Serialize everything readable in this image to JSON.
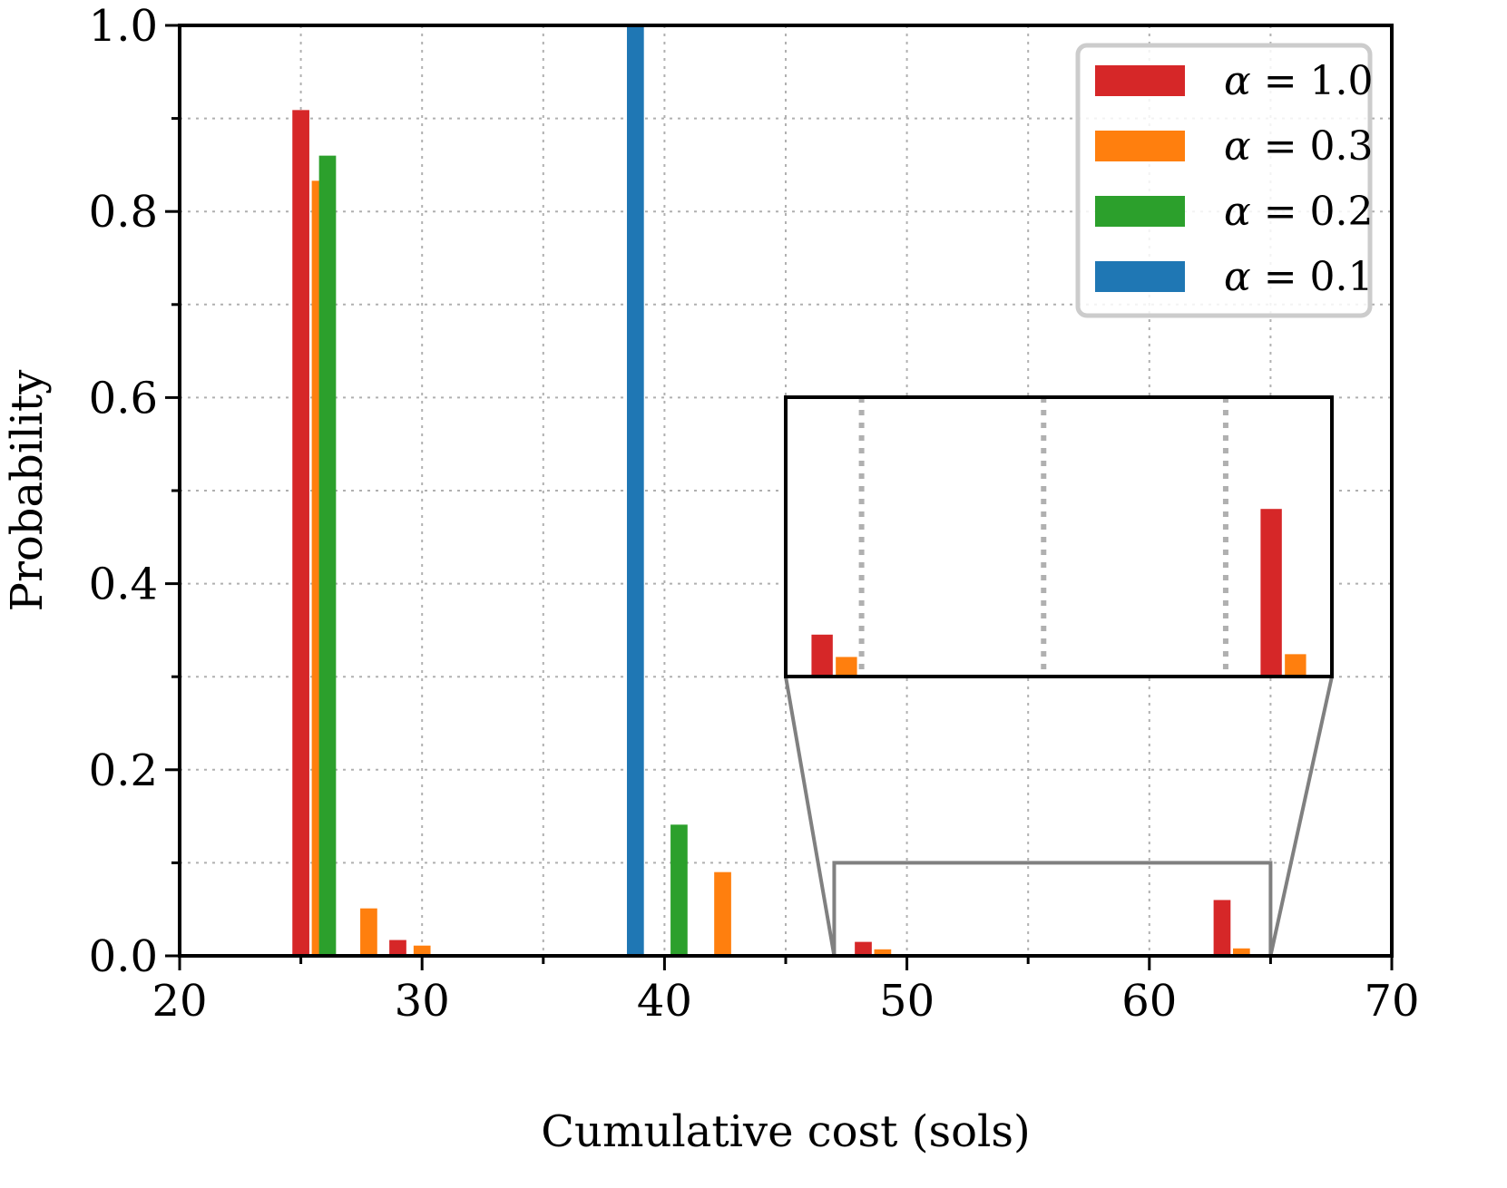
{
  "chart_data": {
    "type": "bar",
    "xlabel": "Cumulative cost (sols)",
    "ylabel": "Probability",
    "xlim": [
      20,
      70
    ],
    "ylim": [
      0,
      1.0
    ],
    "xticks": [
      20,
      30,
      40,
      50,
      60,
      70
    ],
    "xtick_labels": [
      "20",
      "30",
      "40",
      "50",
      "60",
      "70"
    ],
    "yticks": [
      0.0,
      0.2,
      0.4,
      0.6,
      0.8,
      1.0
    ],
    "ytick_labels": [
      "0.0",
      "0.2",
      "0.4",
      "0.6",
      "0.8",
      "1.0"
    ],
    "grid": true,
    "bar_width": 0.7,
    "legend_position": "top-right",
    "series": [
      {
        "name": "α = 1.0",
        "legend_prefix": "α",
        "legend_value": "1.0",
        "color": "#d62728",
        "x": [
          25.0,
          29.0,
          48.2,
          63.0
        ],
        "values": [
          0.909,
          0.017,
          0.015,
          0.06
        ]
      },
      {
        "name": "α = 0.3",
        "legend_prefix": "α",
        "legend_value": "0.3",
        "color": "#ff7f0e",
        "x": [
          25.8,
          27.8,
          30.0,
          42.4,
          49.0,
          63.8
        ],
        "values": [
          0.833,
          0.051,
          0.011,
          0.09,
          0.007,
          0.008
        ]
      },
      {
        "name": "α = 0.2",
        "legend_prefix": "α",
        "legend_value": "0.2",
        "color": "#2ca02c",
        "x": [
          26.1,
          40.6
        ],
        "values": [
          0.86,
          0.141
        ]
      },
      {
        "name": "α = 0.1",
        "legend_prefix": "α",
        "legend_value": "0.1",
        "color": "#1f77b4",
        "x": [
          38.8
        ],
        "values": [
          1.0
        ]
      }
    ],
    "inset": {
      "xlim": [
        47,
        65
      ],
      "ylim": [
        0,
        0.1
      ],
      "grid_x": [
        49.5,
        55.5,
        61.5
      ],
      "box_color": "#808080"
    }
  }
}
